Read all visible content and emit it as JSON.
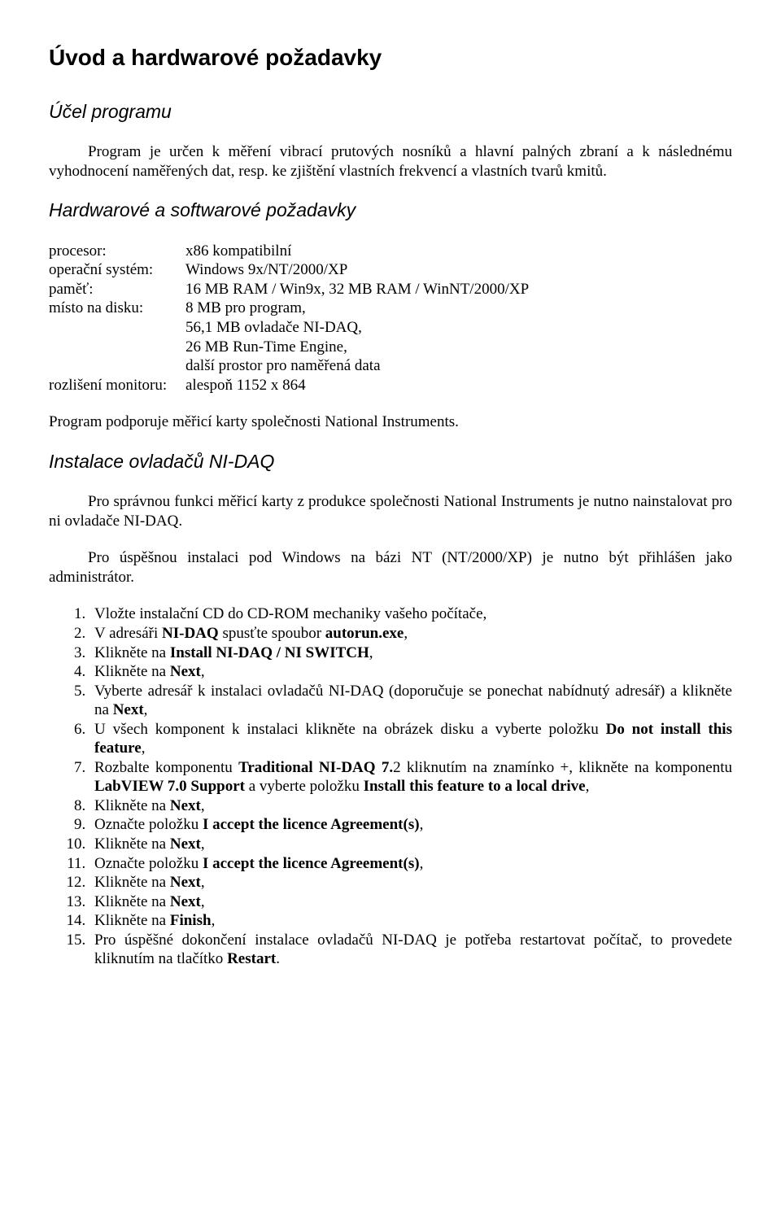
{
  "doc": {
    "h1": "Úvod a hardwarové požadavky",
    "purpose_heading": "Účel programu",
    "purpose_para": "Program je určen k měření vibrací prutových nosníků a hlavní palných zbraní a k následnému vyhodnocení naměřených dat, resp. ke zjištění vlastních frekvencí a vlastních tvarů kmitů.",
    "hwsw_heading": "Hardwarové a softwarové požadavky",
    "specs": {
      "r0": {
        "label": "procesor:",
        "value": "x86 kompatibilní"
      },
      "r1": {
        "label": "operační systém:",
        "value": "Windows 9x/NT/2000/XP"
      },
      "r2": {
        "label": "paměť:",
        "value": "16 MB RAM / Win9x, 32 MB RAM / WinNT/2000/XP"
      },
      "r3": {
        "label": "místo na disku:",
        "value1": "8 MB pro program,",
        "value2": "56,1 MB ovladače NI-DAQ,",
        "value3": "26 MB Run-Time Engine,",
        "value4": "další prostor pro naměřená data"
      },
      "r4": {
        "label": "rozlišení monitoru:",
        "value": "alespoň 1152 x 864"
      }
    },
    "support_line": "Program podporuje měřicí karty společnosti National Instruments.",
    "inst_heading": "Instalace ovladačů NI-DAQ",
    "inst_p1": "Pro správnou funkci měřicí karty z produkce společnosti National Instruments je nutno nainstalovat pro ni ovladače NI-DAQ.",
    "inst_p2": "Pro úspěšnou instalaci pod Windows na bázi NT (NT/2000/XP) je nutno být přihlášen jako administrátor.",
    "steps": {
      "s1a": "Vložte instalační CD do CD-ROM mechaniky vašeho počítače,",
      "s2a": "V adresáři ",
      "s2b": "NI-DAQ",
      "s2c": " spusťte spoubor ",
      "s2d": "autorun.exe",
      "s2e": ",",
      "s3a": "Klikněte na ",
      "s3b": "Install NI-DAQ / NI SWITCH",
      "s3c": ",",
      "s4a": "Klikněte na ",
      "s4b": "Next",
      "s4c": ",",
      "s5a": "Vyberte adresář k instalaci ovladačů NI-DAQ (doporučuje se ponechat nabídnutý adresář) a klikněte na ",
      "s5b": "Next",
      "s5c": ",",
      "s6a": "U všech komponent k instalaci klikněte na obrázek disku a vyberte položku ",
      "s6b": "Do not install this feature",
      "s6c": ",",
      "s7a": "Rozbalte komponentu ",
      "s7b": "Traditional NI-DAQ 7.",
      "s7c": "2 kliknutím na znamínko +, klikněte na komponentu ",
      "s7d": "LabVIEW 7.0 Support",
      "s7e": " a vyberte položku ",
      "s7f": "Install this feature to a local drive",
      "s7g": ",",
      "s8a": "Klikněte na ",
      "s8b": "Next",
      "s8c": ",",
      "s9a": "Označte položku ",
      "s9b": "I accept the licence Agreement(s)",
      "s9c": ",",
      "s10a": "Klikněte na ",
      "s10b": "Next",
      "s10c": ",",
      "s11a": "Označte položku ",
      "s11b": "I accept the licence Agreement(s)",
      "s11c": ",",
      "s12a": "Klikněte na ",
      "s12b": "Next",
      "s12c": ",",
      "s13a": "Klikněte na ",
      "s13b": "Next",
      "s13c": ",",
      "s14a": "Klikněte na ",
      "s14b": "Finish",
      "s14c": ",",
      "s15a": "Pro úspěšné dokončení instalace ovladačů NI-DAQ je potřeba restartovat počítač, to provedete kliknutím na tlačítko ",
      "s15b": "Restart",
      "s15c": "."
    }
  }
}
